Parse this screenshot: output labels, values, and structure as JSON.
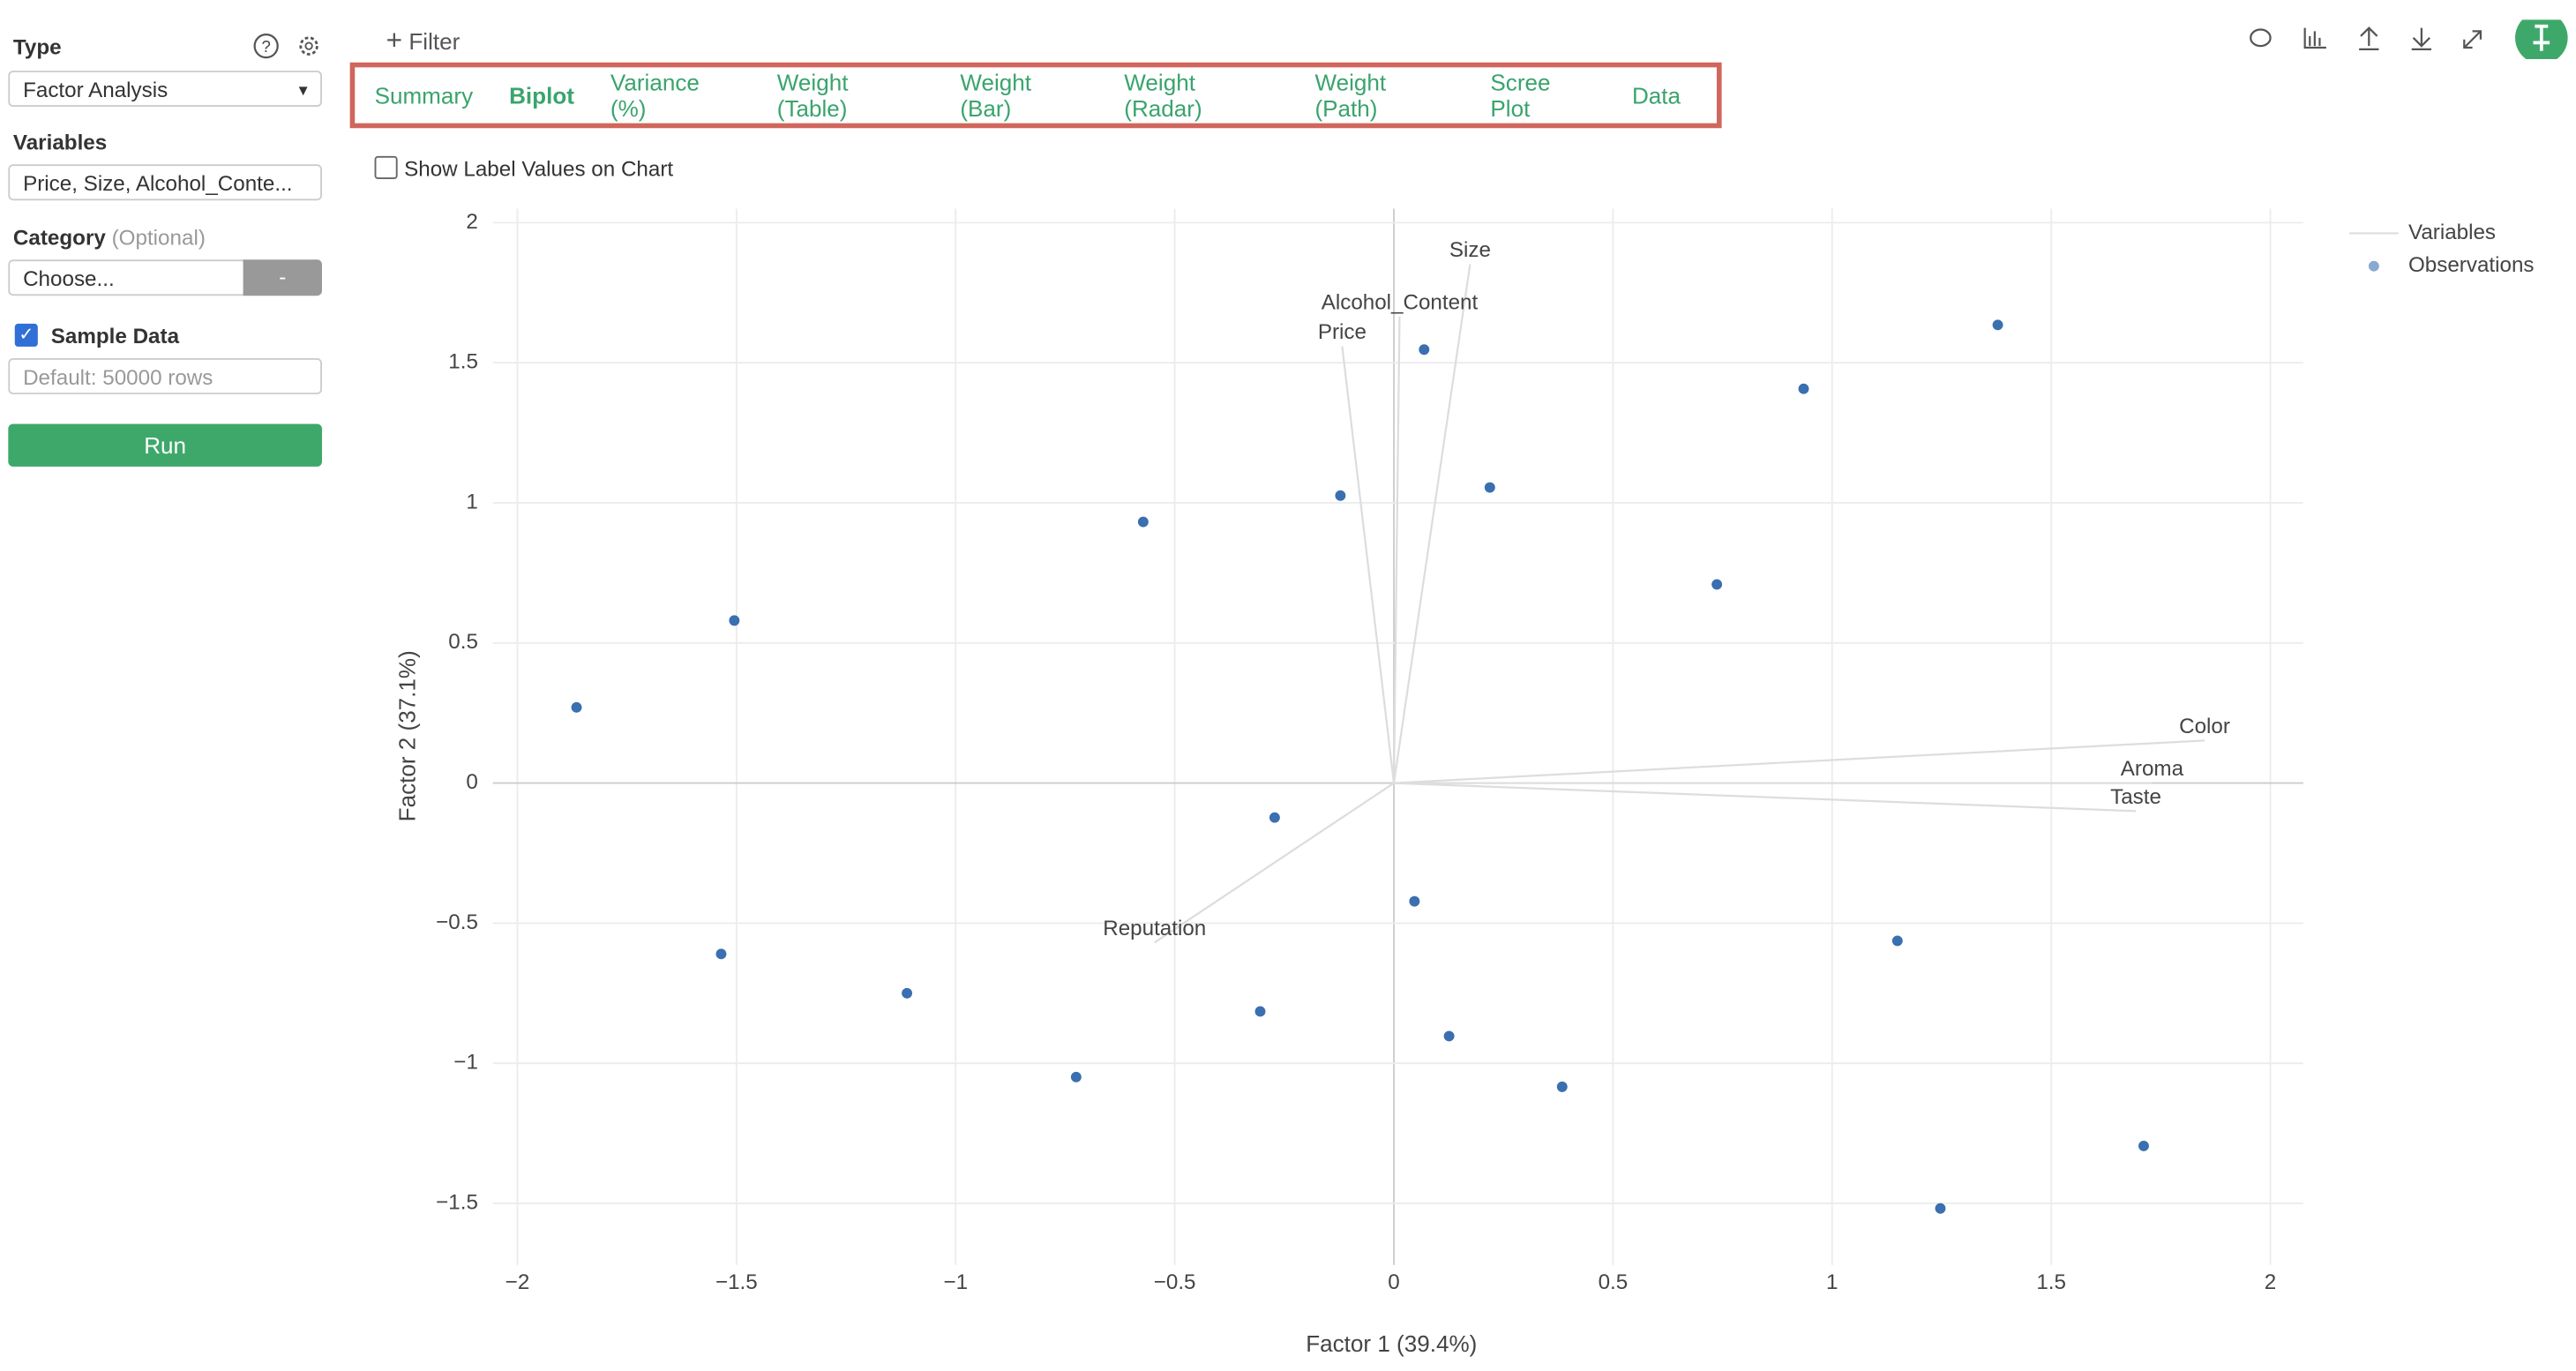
{
  "sidebar": {
    "type_label": "Type",
    "type_value": "Factor Analysis",
    "variables_label": "Variables",
    "variables_value": "Price, Size, Alcohol_Conte...",
    "category_label": "Category",
    "category_optional": "(Optional)",
    "category_value": "Choose...",
    "category_button": "-",
    "sample_label": "Sample Data",
    "sample_placeholder": "Default: 50000 rows",
    "run": "Run"
  },
  "filter": "Filter",
  "tabs": [
    "Summary",
    "Biplot",
    "Variance (%)",
    "Weight (Table)",
    "Weight (Bar)",
    "Weight (Radar)",
    "Weight (Path)",
    "Scree Plot",
    "Data"
  ],
  "active_tab": 1,
  "show_labels_checkbox": "Show Label Values on Chart",
  "chart_data": {
    "type": "scatter",
    "x_label": "Factor 1 (39.4%)",
    "y_label": "Factor 2 (37.1%)",
    "xlim": [
      -2.056,
      2.075
    ],
    "ylim": [
      -1.72,
      2.05
    ],
    "xticks": [
      {
        "value": -2,
        "label": "−2"
      },
      {
        "value": -1.5,
        "label": "−1.5"
      },
      {
        "value": -1,
        "label": "−1"
      },
      {
        "value": -0.5,
        "label": "−0.5"
      },
      0,
      0.5,
      1,
      1.5,
      2
    ],
    "yticks": [
      {
        "value": -1.5,
        "label": "−1.5"
      },
      {
        "value": -1,
        "label": "−1"
      },
      {
        "value": -0.5,
        "label": "−0.5"
      },
      0,
      0.5,
      1,
      1.5,
      2
    ],
    "grid": true,
    "series": [
      {
        "name": "Variables",
        "color": "#dddddd",
        "labels": [
          "Size",
          "Alcohol_Content",
          "Price",
          "Color",
          "Aroma",
          "Taste",
          "Reputation"
        ],
        "x": [
          0.174,
          0.013,
          -0.118,
          1.85,
          1.73,
          1.693,
          -0.546
        ],
        "values": [
          1.852,
          1.665,
          1.559,
          0.152,
          0.0,
          -0.1,
          -0.569
        ]
      },
      {
        "name": "Observations",
        "color": "#3a6fb0",
        "x": [
          -1.865,
          -1.505,
          -0.572,
          -0.122,
          0.069,
          0.219,
          0.935,
          1.378,
          0.737,
          -0.272,
          0.047,
          -1.535,
          -1.111,
          -0.725,
          -0.305,
          0.126,
          0.384,
          1.149,
          1.711,
          1.247
        ],
        "values": [
          0.27,
          0.58,
          0.932,
          1.026,
          1.547,
          1.055,
          1.407,
          1.635,
          0.709,
          -0.123,
          -0.422,
          -0.61,
          -0.75,
          -1.049,
          -0.815,
          -0.903,
          -1.084,
          -0.563,
          -1.295,
          -1.518
        ]
      }
    ]
  }
}
